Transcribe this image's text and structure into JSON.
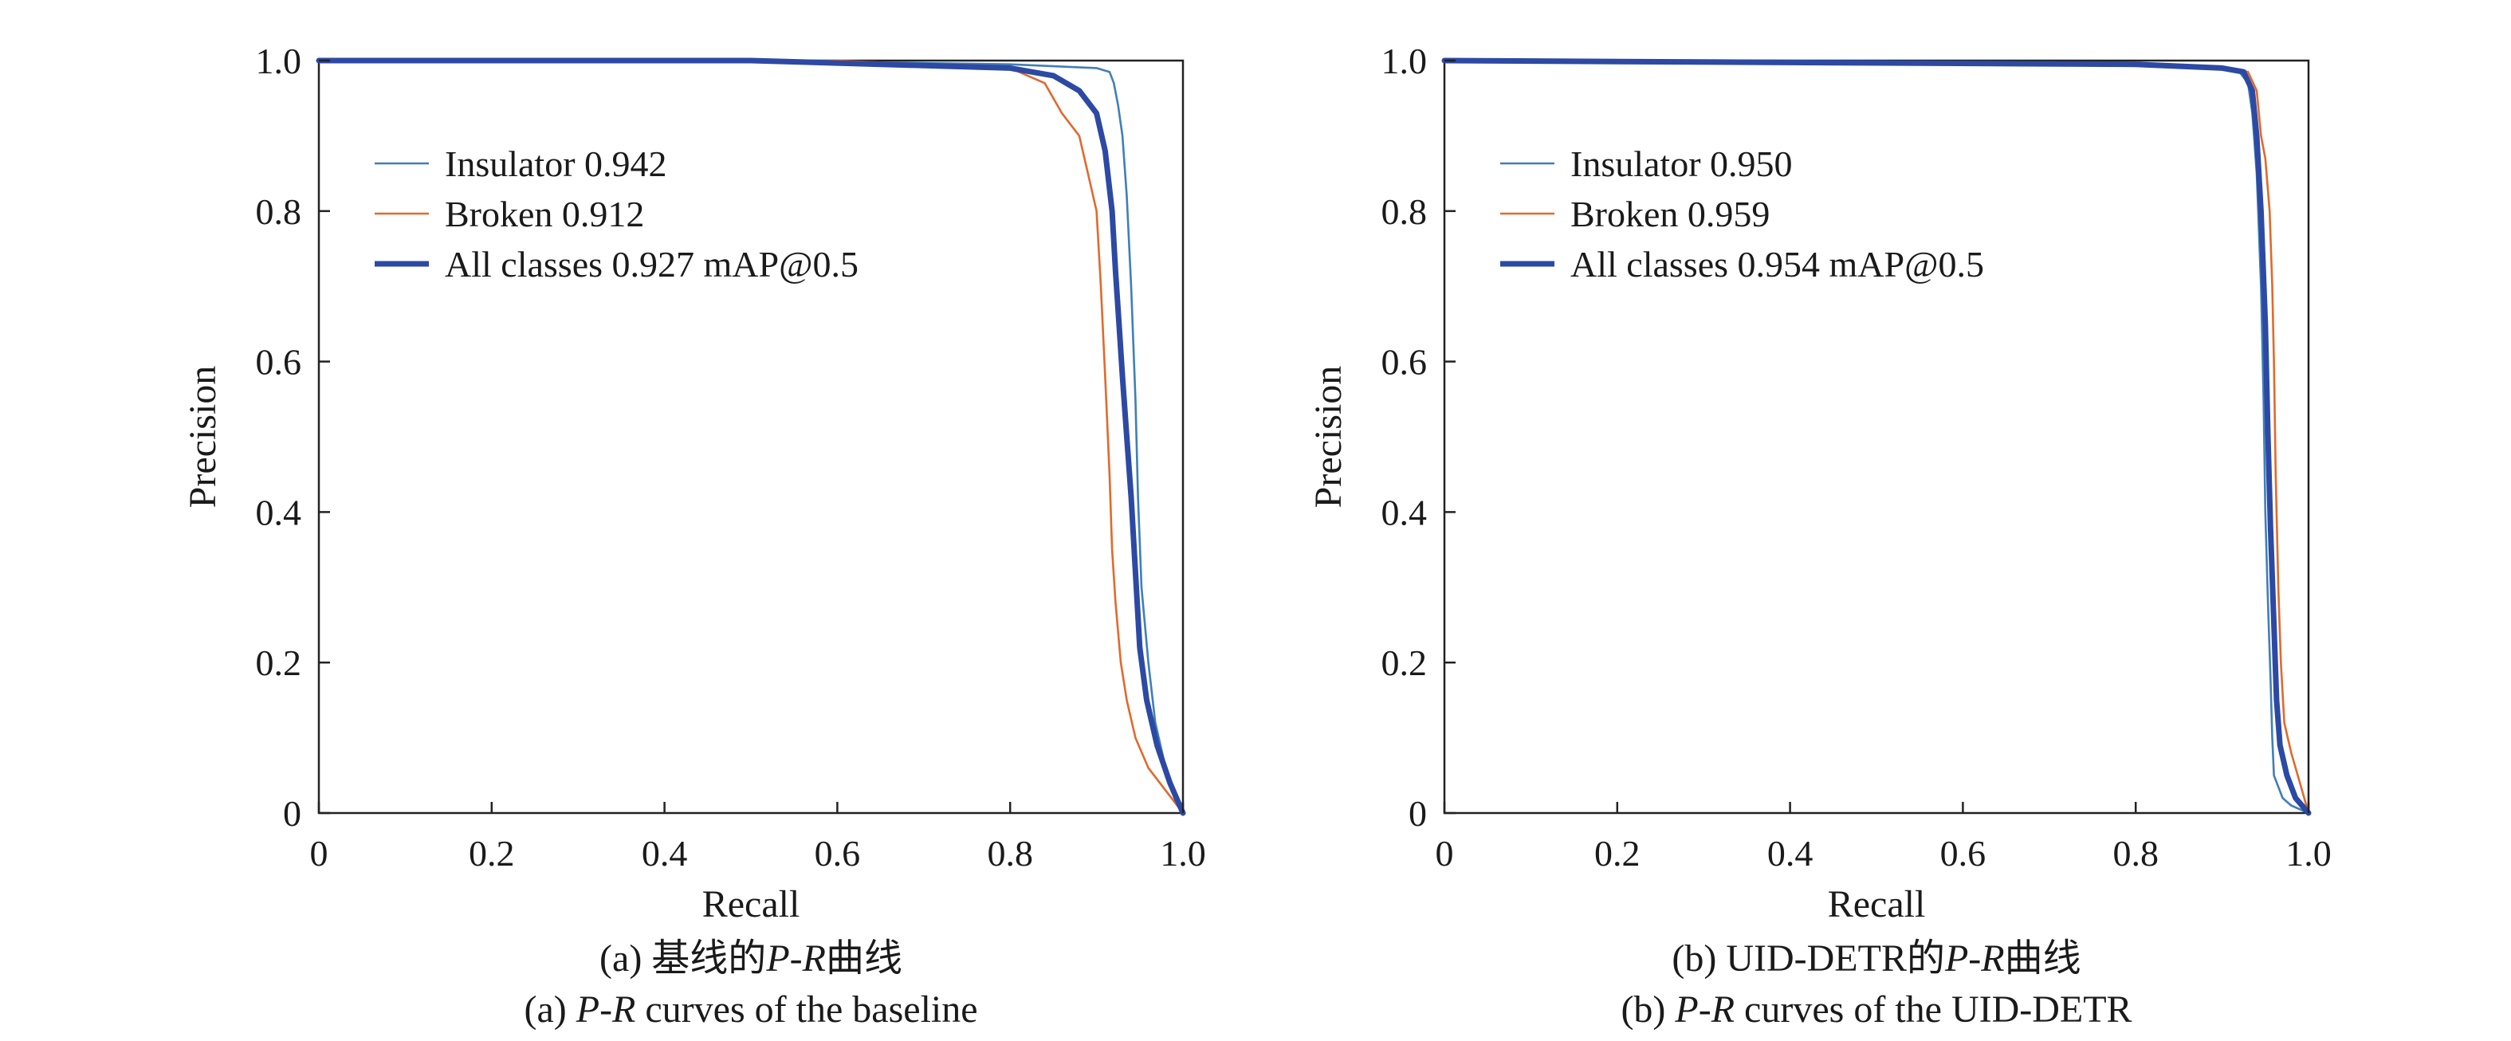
{
  "colors": {
    "insulator": "#3f7fb8",
    "broken": "#e06a2c",
    "all_classes": "#2c49a4",
    "axis": "#222222"
  },
  "chart_data": [
    {
      "type": "line",
      "xlabel": "Recall",
      "ylabel": "Precision",
      "xlim": [
        0,
        1
      ],
      "ylim": [
        0,
        1
      ],
      "x_ticks": [
        "0",
        "0.2",
        "0.4",
        "0.6",
        "0.8",
        "1.0"
      ],
      "y_ticks": [
        "0",
        "0.2",
        "0.4",
        "0.6",
        "0.8",
        "1.0"
      ],
      "grid": false,
      "legend_position": "top-left",
      "caption_cn": {
        "prefix": "(a) 基线的",
        "p": "P",
        "dash": "-",
        "r": "R",
        "suffix": "曲线"
      },
      "caption_en": {
        "prefix": "(a) ",
        "p": "P",
        "dash": "-",
        "r": "R",
        "suffix": " curves of the baseline"
      },
      "series": [
        {
          "name": "Insulator 0.942",
          "color_key": "insulator",
          "width": "thin",
          "points": [
            [
              0,
              1.0
            ],
            [
              0.5,
              1.0
            ],
            [
              0.8,
              0.995
            ],
            [
              0.9,
              0.99
            ],
            [
              0.915,
              0.985
            ],
            [
              0.92,
              0.97
            ],
            [
              0.925,
              0.94
            ],
            [
              0.93,
              0.9
            ],
            [
              0.935,
              0.82
            ],
            [
              0.94,
              0.7
            ],
            [
              0.945,
              0.55
            ],
            [
              0.948,
              0.42
            ],
            [
              0.952,
              0.3
            ],
            [
              0.96,
              0.2
            ],
            [
              0.968,
              0.12
            ],
            [
              0.98,
              0.06
            ],
            [
              0.99,
              0.02
            ],
            [
              1.0,
              0.0
            ]
          ]
        },
        {
          "name": "Broken 0.912",
          "color_key": "broken",
          "width": "thin",
          "points": [
            [
              0,
              1.0
            ],
            [
              0.6,
              1.0
            ],
            [
              0.8,
              0.99
            ],
            [
              0.84,
              0.97
            ],
            [
              0.86,
              0.93
            ],
            [
              0.88,
              0.9
            ],
            [
              0.89,
              0.85
            ],
            [
              0.9,
              0.8
            ],
            [
              0.905,
              0.7
            ],
            [
              0.91,
              0.58
            ],
            [
              0.915,
              0.45
            ],
            [
              0.918,
              0.35
            ],
            [
              0.922,
              0.28
            ],
            [
              0.928,
              0.2
            ],
            [
              0.935,
              0.15
            ],
            [
              0.945,
              0.1
            ],
            [
              0.96,
              0.06
            ],
            [
              0.98,
              0.03
            ],
            [
              1.0,
              0.0
            ]
          ]
        },
        {
          "name": "All classes 0.927 mAP@0.5",
          "color_key": "all_classes",
          "width": "thick",
          "points": [
            [
              0,
              1.0
            ],
            [
              0.5,
              1.0
            ],
            [
              0.8,
              0.99
            ],
            [
              0.85,
              0.98
            ],
            [
              0.88,
              0.96
            ],
            [
              0.9,
              0.93
            ],
            [
              0.91,
              0.88
            ],
            [
              0.918,
              0.8
            ],
            [
              0.922,
              0.72
            ],
            [
              0.926,
              0.65
            ],
            [
              0.93,
              0.58
            ],
            [
              0.935,
              0.5
            ],
            [
              0.94,
              0.42
            ],
            [
              0.945,
              0.32
            ],
            [
              0.95,
              0.22
            ],
            [
              0.958,
              0.15
            ],
            [
              0.97,
              0.09
            ],
            [
              0.985,
              0.04
            ],
            [
              1.0,
              0.0
            ]
          ]
        }
      ]
    },
    {
      "type": "line",
      "xlabel": "Recall",
      "ylabel": "Precision",
      "xlim": [
        0,
        1
      ],
      "ylim": [
        0,
        1
      ],
      "x_ticks": [
        "0",
        "0.2",
        "0.4",
        "0.6",
        "0.8",
        "1.0"
      ],
      "y_ticks": [
        "0",
        "0.2",
        "0.4",
        "0.6",
        "0.8",
        "1.0"
      ],
      "grid": false,
      "legend_position": "top-left",
      "caption_cn": {
        "prefix": "(b) UID-DETR的",
        "p": "P",
        "dash": "-",
        "r": "R",
        "suffix": "曲线"
      },
      "caption_en": {
        "prefix": "(b) ",
        "p": "P",
        "dash": "-",
        "r": "R",
        "suffix": " curves of the UID-DETR"
      },
      "series": [
        {
          "name": "Insulator 0.950",
          "color_key": "insulator",
          "width": "thin",
          "points": [
            [
              0,
              1.0
            ],
            [
              0.8,
              0.995
            ],
            [
              0.9,
              0.99
            ],
            [
              0.92,
              0.985
            ],
            [
              0.93,
              0.97
            ],
            [
              0.935,
              0.93
            ],
            [
              0.94,
              0.85
            ],
            [
              0.945,
              0.7
            ],
            [
              0.948,
              0.55
            ],
            [
              0.95,
              0.4
            ],
            [
              0.953,
              0.28
            ],
            [
              0.956,
              0.18
            ],
            [
              0.958,
              0.1
            ],
            [
              0.96,
              0.05
            ],
            [
              0.97,
              0.02
            ],
            [
              0.98,
              0.01
            ],
            [
              1.0,
              0.0
            ]
          ]
        },
        {
          "name": "Broken 0.959",
          "color_key": "broken",
          "width": "thin",
          "points": [
            [
              0,
              1.0
            ],
            [
              0.8,
              0.995
            ],
            [
              0.9,
              0.99
            ],
            [
              0.93,
              0.985
            ],
            [
              0.94,
              0.96
            ],
            [
              0.945,
              0.9
            ],
            [
              0.95,
              0.87
            ],
            [
              0.955,
              0.8
            ],
            [
              0.958,
              0.7
            ],
            [
              0.96,
              0.6
            ],
            [
              0.962,
              0.45
            ],
            [
              0.965,
              0.3
            ],
            [
              0.968,
              0.2
            ],
            [
              0.972,
              0.12
            ],
            [
              0.98,
              0.08
            ],
            [
              0.99,
              0.04
            ],
            [
              1.0,
              0.0
            ]
          ]
        },
        {
          "name": "All classes 0.954 mAP@0.5",
          "color_key": "all_classes",
          "width": "thick",
          "points": [
            [
              0,
              1.0
            ],
            [
              0.8,
              0.995
            ],
            [
              0.9,
              0.99
            ],
            [
              0.925,
              0.985
            ],
            [
              0.935,
              0.96
            ],
            [
              0.94,
              0.9
            ],
            [
              0.945,
              0.8
            ],
            [
              0.95,
              0.65
            ],
            [
              0.953,
              0.5
            ],
            [
              0.956,
              0.38
            ],
            [
              0.96,
              0.25
            ],
            [
              0.963,
              0.15
            ],
            [
              0.967,
              0.09
            ],
            [
              0.975,
              0.05
            ],
            [
              0.985,
              0.02
            ],
            [
              1.0,
              0.0
            ]
          ]
        }
      ]
    }
  ]
}
